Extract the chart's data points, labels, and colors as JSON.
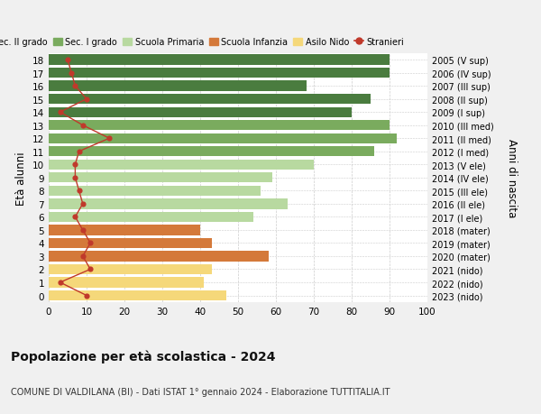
{
  "ages": [
    18,
    17,
    16,
    15,
    14,
    13,
    12,
    11,
    10,
    9,
    8,
    7,
    6,
    5,
    4,
    3,
    2,
    1,
    0
  ],
  "bar_values": [
    90,
    90,
    68,
    85,
    80,
    90,
    92,
    86,
    70,
    59,
    56,
    63,
    54,
    40,
    43,
    58,
    43,
    41,
    47
  ],
  "stranieri": [
    5,
    6,
    7,
    10,
    3,
    9,
    16,
    8,
    7,
    7,
    8,
    9,
    7,
    9,
    11,
    9,
    11,
    3,
    10
  ],
  "right_labels": [
    "2005 (V sup)",
    "2006 (IV sup)",
    "2007 (III sup)",
    "2008 (II sup)",
    "2009 (I sup)",
    "2010 (III med)",
    "2011 (II med)",
    "2012 (I med)",
    "2013 (V ele)",
    "2014 (IV ele)",
    "2015 (III ele)",
    "2016 (II ele)",
    "2017 (I ele)",
    "2018 (mater)",
    "2019 (mater)",
    "2020 (mater)",
    "2021 (nido)",
    "2022 (nido)",
    "2023 (nido)"
  ],
  "bar_colors": [
    "#4a7c3f",
    "#4a7c3f",
    "#4a7c3f",
    "#4a7c3f",
    "#4a7c3f",
    "#7aab5e",
    "#7aab5e",
    "#7aab5e",
    "#b8d9a0",
    "#b8d9a0",
    "#b8d9a0",
    "#b8d9a0",
    "#b8d9a0",
    "#d4793a",
    "#d4793a",
    "#d4793a",
    "#f5d87a",
    "#f5d87a",
    "#f5d87a"
  ],
  "legend_items": [
    {
      "label": "Sec. II grado",
      "color": "#4a7c3f"
    },
    {
      "label": "Sec. I grado",
      "color": "#7aab5e"
    },
    {
      "label": "Scuola Primaria",
      "color": "#b8d9a0"
    },
    {
      "label": "Scuola Infanzia",
      "color": "#d4793a"
    },
    {
      "label": "Asilo Nido",
      "color": "#f5d87a"
    },
    {
      "label": "Stranieri",
      "color": "#c0392b"
    }
  ],
  "ylabel": "Età alunni",
  "right_ylabel": "Anni di nascita",
  "title": "Popolazione per età scolastica - 2024",
  "subtitle": "COMUNE DI VALDILANA (BI) - Dati ISTAT 1° gennaio 2024 - Elaborazione TUTTITALIA.IT",
  "xlim": [
    0,
    100
  ],
  "figure_bg": "#f0f0f0",
  "axes_bg": "#ffffff",
  "grid_color": "#cccccc"
}
